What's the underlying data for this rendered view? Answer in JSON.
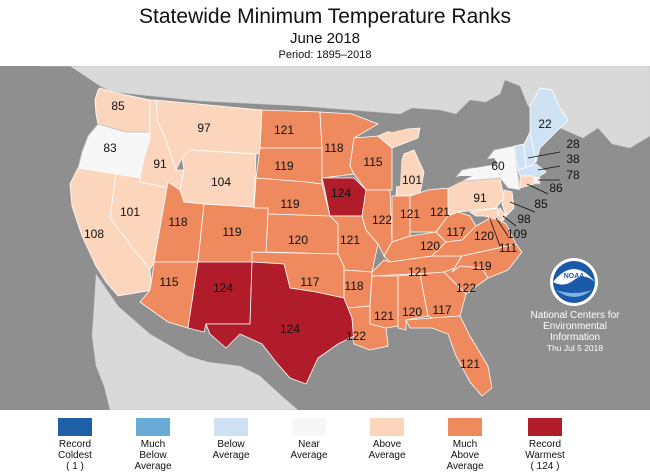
{
  "header": {
    "title": "Statewide Minimum Temperature Ranks",
    "subtitle": "June 2018",
    "period": "Period: 1895–2018"
  },
  "colors": {
    "record_coldest": "#1f5fa8",
    "much_below": "#6aaad6",
    "below": "#cfe2f3",
    "near": "#f7f7f7",
    "above": "#fbd6bd",
    "much_above": "#ee8a5e",
    "record_warmest": "#b11c2a",
    "background": "#8f8f8f",
    "land_other": "#d9d9d9",
    "water": "#8f8f8f"
  },
  "map": {
    "states": [
      {
        "id": "WA",
        "rank": "85",
        "category": "above"
      },
      {
        "id": "OR",
        "rank": "83",
        "category": "near"
      },
      {
        "id": "CA",
        "rank": "108",
        "category": "above"
      },
      {
        "id": "NV",
        "rank": "101",
        "category": "above"
      },
      {
        "id": "ID",
        "rank": "91",
        "category": "above"
      },
      {
        "id": "MT",
        "rank": "97",
        "category": "above"
      },
      {
        "id": "WY",
        "rank": "104",
        "category": "above"
      },
      {
        "id": "UT",
        "rank": "118",
        "category": "much_above"
      },
      {
        "id": "AZ",
        "rank": "115",
        "category": "much_above"
      },
      {
        "id": "CO",
        "rank": "119",
        "category": "much_above"
      },
      {
        "id": "NM",
        "rank": "124",
        "category": "record_warmest"
      },
      {
        "id": "ND",
        "rank": "121",
        "category": "much_above"
      },
      {
        "id": "SD",
        "rank": "119",
        "category": "much_above"
      },
      {
        "id": "NE",
        "rank": "119",
        "category": "much_above"
      },
      {
        "id": "KS",
        "rank": "120",
        "category": "much_above"
      },
      {
        "id": "OK",
        "rank": "117",
        "category": "much_above"
      },
      {
        "id": "TX",
        "rank": "124",
        "category": "record_warmest"
      },
      {
        "id": "MN",
        "rank": "118",
        "category": "much_above"
      },
      {
        "id": "IA",
        "rank": "124",
        "category": "record_warmest"
      },
      {
        "id": "MO",
        "rank": "121",
        "category": "much_above"
      },
      {
        "id": "AR",
        "rank": "118",
        "category": "much_above"
      },
      {
        "id": "LA",
        "rank": "122",
        "category": "much_above"
      },
      {
        "id": "WI",
        "rank": "115",
        "category": "much_above"
      },
      {
        "id": "IL",
        "rank": "122",
        "category": "much_above"
      },
      {
        "id": "MI",
        "rank": "101",
        "category": "above"
      },
      {
        "id": "IN",
        "rank": "121",
        "category": "much_above"
      },
      {
        "id": "OH",
        "rank": "121",
        "category": "much_above"
      },
      {
        "id": "KY",
        "rank": "120",
        "category": "much_above"
      },
      {
        "id": "TN",
        "rank": "121",
        "category": "much_above"
      },
      {
        "id": "MS",
        "rank": "121",
        "category": "much_above"
      },
      {
        "id": "AL",
        "rank": "120",
        "category": "much_above"
      },
      {
        "id": "GA",
        "rank": "117",
        "category": "much_above"
      },
      {
        "id": "FL",
        "rank": "121",
        "category": "much_above"
      },
      {
        "id": "SC",
        "rank": "122",
        "category": "much_above"
      },
      {
        "id": "NC",
        "rank": "119",
        "category": "much_above"
      },
      {
        "id": "VA",
        "rank": "120",
        "category": "much_above"
      },
      {
        "id": "WV",
        "rank": "117",
        "category": "much_above"
      },
      {
        "id": "PA",
        "rank": "91",
        "category": "above"
      },
      {
        "id": "NY",
        "rank": "60",
        "category": "near"
      },
      {
        "id": "ME",
        "rank": "22",
        "category": "below"
      },
      {
        "id": "VT",
        "rank": "",
        "category": "below"
      },
      {
        "id": "NH",
        "rank": "28",
        "category": "below"
      },
      {
        "id": "MA",
        "rank": "38",
        "category": "below"
      },
      {
        "id": "RI",
        "rank": "78",
        "category": "near"
      },
      {
        "id": "CT",
        "rank": "86",
        "category": "above"
      },
      {
        "id": "NJ",
        "rank": "85",
        "category": "above"
      },
      {
        "id": "DE",
        "rank": "98",
        "category": "above"
      },
      {
        "id": "MD",
        "rank": "109",
        "category": "above"
      },
      {
        "id": "DC",
        "rank": "111",
        "category": "much_above"
      }
    ]
  },
  "noaa": {
    "logo_text": "NOAA",
    "line1": "National Centers for",
    "line2": "Environmental",
    "line3": "Information",
    "date": "Thu Jul  5 2018"
  },
  "legend": [
    {
      "line1": "Record",
      "line2": "Coldest",
      "line3": "( 1 )",
      "color": "#1f5fa8"
    },
    {
      "line1": "Much",
      "line2": "Below",
      "line3": "Average",
      "color": "#6aaad6"
    },
    {
      "line1": "Below",
      "line2": "Average",
      "line3": "",
      "color": "#cfe2f3"
    },
    {
      "line1": "Near",
      "line2": "Average",
      "line3": "",
      "color": "#f7f7f7"
    },
    {
      "line1": "Above",
      "line2": "Average",
      "line3": "",
      "color": "#fbd6bd"
    },
    {
      "line1": "Much",
      "line2": "Above",
      "line3": "Average",
      "color": "#ee8a5e"
    },
    {
      "line1": "Record",
      "line2": "Warmest",
      "line3": "( 124 )",
      "color": "#b11c2a"
    }
  ]
}
